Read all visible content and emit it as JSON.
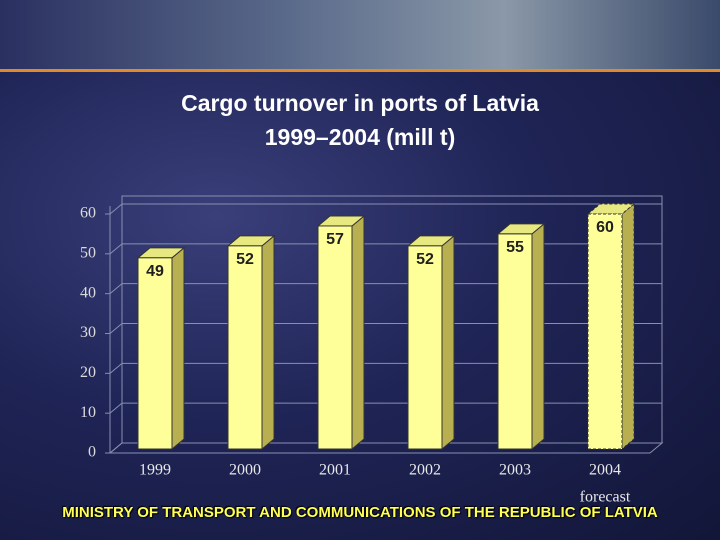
{
  "chart_data": {
    "type": "bar",
    "title": [
      "Cargo turnover in ports of Latvia",
      "1999–2004 (mill t)"
    ],
    "categories": [
      "1999",
      "2000",
      "2001",
      "2002",
      "2003",
      "2004"
    ],
    "values": [
      49,
      52,
      57,
      52,
      55,
      60
    ],
    "color": "#ffff99",
    "ylim": [
      0,
      60
    ],
    "yticks": [
      0,
      10,
      20,
      30,
      40,
      50,
      60
    ],
    "grid": true,
    "annotations": [
      {
        "text": "forecast",
        "category": "2004"
      }
    ]
  },
  "footer": "MINISTRY OF TRANSPORT AND COMMUNICATIONS OF THE REPUBLIC OF LATVIA"
}
